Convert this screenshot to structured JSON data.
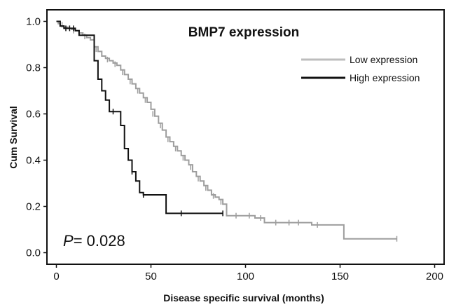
{
  "chart_data": {
    "type": "line",
    "title": "BMP7 expression",
    "xlabel": "Disease specific survival (months)",
    "ylabel": "Cum Survival",
    "xlim": [
      -5,
      205
    ],
    "ylim": [
      -0.05,
      1.05
    ],
    "x_ticks": [
      "0",
      "50",
      "100",
      "150",
      "200"
    ],
    "y_ticks": [
      "0.0",
      "0.2",
      "0.4",
      "0.6",
      "0.8",
      "1.0"
    ],
    "legend_position": "top-right",
    "annotation": {
      "prefix": "P",
      "text": "= 0.028"
    },
    "series": [
      {
        "name": "Low expression",
        "color": "#9e9e9e",
        "points": [
          [
            0,
            1.0
          ],
          [
            1,
            0.99
          ],
          [
            2,
            0.98
          ],
          [
            4,
            0.975
          ],
          [
            6,
            0.97
          ],
          [
            8,
            0.965
          ],
          [
            10,
            0.96
          ],
          [
            12,
            0.95
          ],
          [
            14,
            0.94
          ],
          [
            16,
            0.93
          ],
          [
            18,
            0.92
          ],
          [
            20,
            0.89
          ],
          [
            22,
            0.87
          ],
          [
            24,
            0.85
          ],
          [
            26,
            0.84
          ],
          [
            28,
            0.83
          ],
          [
            30,
            0.82
          ],
          [
            32,
            0.81
          ],
          [
            34,
            0.79
          ],
          [
            36,
            0.77
          ],
          [
            38,
            0.75
          ],
          [
            40,
            0.73
          ],
          [
            42,
            0.71
          ],
          [
            44,
            0.69
          ],
          [
            46,
            0.67
          ],
          [
            48,
            0.65
          ],
          [
            50,
            0.62
          ],
          [
            52,
            0.59
          ],
          [
            54,
            0.56
          ],
          [
            56,
            0.53
          ],
          [
            58,
            0.5
          ],
          [
            60,
            0.48
          ],
          [
            62,
            0.46
          ],
          [
            64,
            0.44
          ],
          [
            66,
            0.42
          ],
          [
            68,
            0.4
          ],
          [
            70,
            0.38
          ],
          [
            72,
            0.35
          ],
          [
            74,
            0.33
          ],
          [
            76,
            0.31
          ],
          [
            78,
            0.29
          ],
          [
            80,
            0.27
          ],
          [
            82,
            0.25
          ],
          [
            84,
            0.24
          ],
          [
            86,
            0.23
          ],
          [
            88,
            0.21
          ],
          [
            90,
            0.16
          ],
          [
            100,
            0.16
          ],
          [
            105,
            0.15
          ],
          [
            110,
            0.13
          ],
          [
            125,
            0.13
          ],
          [
            135,
            0.12
          ],
          [
            152,
            0.12
          ],
          [
            152,
            0.06
          ],
          [
            180,
            0.06
          ]
        ],
        "censored": [
          [
            3,
            0.985
          ],
          [
            9,
            0.96
          ],
          [
            15,
            0.935
          ],
          [
            21,
            0.88
          ],
          [
            27,
            0.835
          ],
          [
            31,
            0.815
          ],
          [
            35,
            0.78
          ],
          [
            39,
            0.74
          ],
          [
            43,
            0.7
          ],
          [
            47,
            0.66
          ],
          [
            51,
            0.6
          ],
          [
            55,
            0.55
          ],
          [
            59,
            0.49
          ],
          [
            63,
            0.45
          ],
          [
            67,
            0.41
          ],
          [
            71,
            0.37
          ],
          [
            75,
            0.32
          ],
          [
            79,
            0.28
          ],
          [
            83,
            0.245
          ],
          [
            87,
            0.22
          ],
          [
            95,
            0.16
          ],
          [
            102,
            0.16
          ],
          [
            108,
            0.15
          ],
          [
            116,
            0.13
          ],
          [
            123,
            0.13
          ],
          [
            128,
            0.13
          ],
          [
            138,
            0.12
          ],
          [
            180,
            0.06
          ]
        ]
      },
      {
        "name": "High expression",
        "color": "#111111",
        "points": [
          [
            0,
            1.0
          ],
          [
            2,
            0.98
          ],
          [
            4,
            0.97
          ],
          [
            8,
            0.97
          ],
          [
            10,
            0.96
          ],
          [
            12,
            0.94
          ],
          [
            18,
            0.94
          ],
          [
            20,
            0.83
          ],
          [
            22,
            0.75
          ],
          [
            24,
            0.7
          ],
          [
            26,
            0.66
          ],
          [
            28,
            0.61
          ],
          [
            32,
            0.61
          ],
          [
            34,
            0.55
          ],
          [
            36,
            0.45
          ],
          [
            38,
            0.4
          ],
          [
            40,
            0.35
          ],
          [
            42,
            0.31
          ],
          [
            44,
            0.26
          ],
          [
            46,
            0.25
          ],
          [
            58,
            0.25
          ],
          [
            58,
            0.17
          ],
          [
            88,
            0.17
          ]
        ],
        "censored": [
          [
            5,
            0.97
          ],
          [
            7,
            0.97
          ],
          [
            9,
            0.97
          ],
          [
            30,
            0.61
          ],
          [
            40,
            0.35
          ],
          [
            46,
            0.25
          ],
          [
            66,
            0.17
          ],
          [
            88,
            0.17
          ]
        ]
      }
    ]
  }
}
